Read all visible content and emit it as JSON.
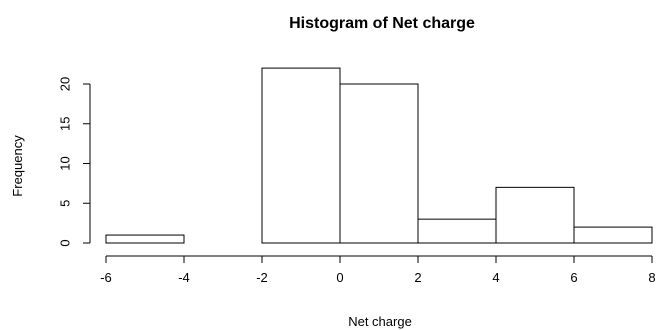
{
  "chart_data": {
    "type": "bar",
    "title": "Histogram of Net charge",
    "xlabel": "Net charge",
    "ylabel": "Frequency",
    "bins": [
      {
        "start": -6,
        "end": -4,
        "count": 1
      },
      {
        "start": -4,
        "end": -2,
        "count": 0
      },
      {
        "start": -2,
        "end": 0,
        "count": 22
      },
      {
        "start": 0,
        "end": 2,
        "count": 20
      },
      {
        "start": 2,
        "end": 4,
        "count": 3
      },
      {
        "start": 4,
        "end": 6,
        "count": 7
      },
      {
        "start": 6,
        "end": 8,
        "count": 2
      }
    ],
    "xlim": [
      -6,
      8
    ],
    "ylim": [
      0,
      22
    ],
    "xticks": [
      -6,
      -4,
      -2,
      0,
      2,
      4,
      6,
      8
    ],
    "yticks": [
      0,
      5,
      10,
      15,
      20
    ],
    "grid": false,
    "bar_fill": "#ffffff",
    "bar_stroke": "#000000"
  }
}
